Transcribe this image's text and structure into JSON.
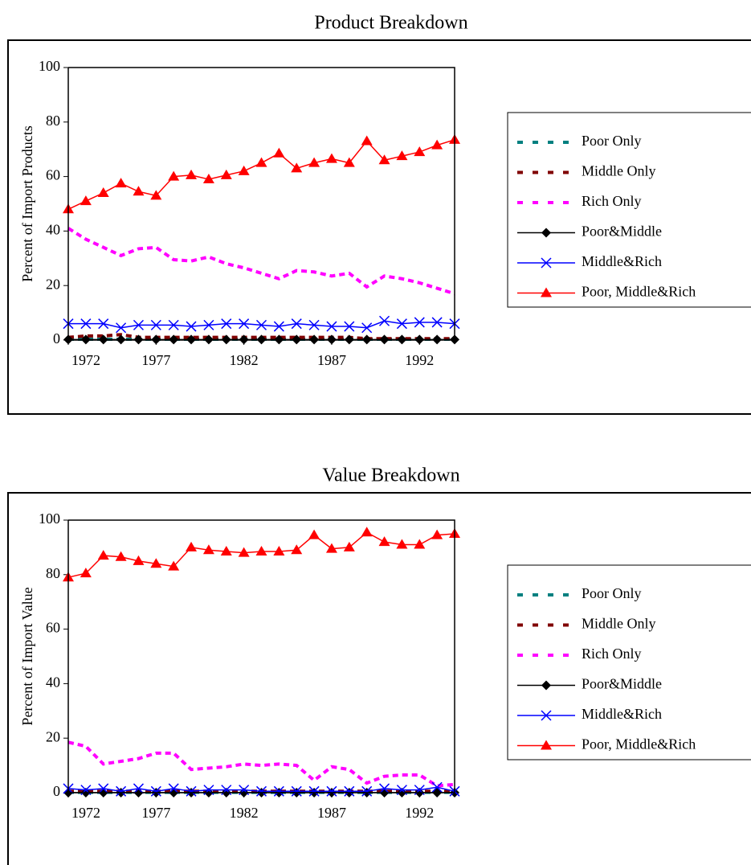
{
  "chart_data": [
    {
      "type": "line",
      "title": "Product Breakdown",
      "y_label": "Percent of Import Products",
      "x": [
        1972,
        1973,
        1974,
        1975,
        1976,
        1977,
        1978,
        1979,
        1980,
        1981,
        1982,
        1983,
        1984,
        1985,
        1986,
        1987,
        1988,
        1989,
        1990,
        1991,
        1992,
        1993,
        1994
      ],
      "xlim": [
        1972,
        1994
      ],
      "xticks": [
        1972,
        1977,
        1982,
        1987,
        1992
      ],
      "ylim": [
        0,
        100
      ],
      "yticks": [
        0,
        20,
        40,
        60,
        80,
        100
      ],
      "series": [
        {
          "name": "Poor Only",
          "color": "#008080",
          "style": "dashed",
          "values": [
            0.3,
            0.3,
            0.3,
            0.3,
            0.3,
            0.3,
            0.3,
            0.3,
            0.3,
            0.3,
            0.3,
            0.3,
            0.3,
            0.3,
            0.3,
            0.3,
            0.3,
            0.3,
            0.3,
            0.3,
            0.3,
            0.3,
            0.3
          ]
        },
        {
          "name": "Middle Only",
          "color": "#800000",
          "style": "dashed",
          "values": [
            1,
            1.5,
            1.5,
            2,
            1,
            1,
            1,
            1,
            1,
            1,
            1,
            1,
            1,
            1,
            1,
            1,
            1,
            0.5,
            0.5,
            0.5,
            0.5,
            0.5,
            0.5
          ]
        },
        {
          "name": "Rich Only",
          "color": "#ff00ff",
          "style": "dashed",
          "values": [
            41,
            37,
            34,
            31,
            33.5,
            34,
            29.5,
            29,
            30.5,
            28,
            26.5,
            24.5,
            22.5,
            25.5,
            25,
            23.5,
            24.5,
            19.5,
            23.5,
            22.5,
            21,
            19,
            17
          ]
        },
        {
          "name": "Poor&Middle",
          "color": "#000000",
          "style": "solid",
          "marker": "diamond",
          "values": [
            0.2,
            0.2,
            0.2,
            0.2,
            0.2,
            0.2,
            0.2,
            0.2,
            0.2,
            0.2,
            0.2,
            0.2,
            0.2,
            0.2,
            0.2,
            0.2,
            0.2,
            0.2,
            0.2,
            0.2,
            0.2,
            0.2,
            0.2
          ]
        },
        {
          "name": "Middle&Rich",
          "color": "#0000ff",
          "style": "solid",
          "marker": "x",
          "values": [
            6,
            6,
            6,
            4.5,
            5.5,
            5.5,
            5.5,
            5,
            5.5,
            6,
            6,
            5.5,
            5,
            6,
            5.5,
            5,
            5,
            4.5,
            7,
            6,
            6.5,
            6.5,
            6
          ]
        },
        {
          "name": "Poor, Middle&Rich",
          "color": "#ff0000",
          "style": "solid",
          "marker": "triangle",
          "values": [
            48,
            51,
            54,
            57.5,
            54.5,
            53,
            60,
            60.5,
            59,
            60.5,
            62,
            65,
            68.5,
            63,
            65,
            66.5,
            65,
            73,
            66,
            67.5,
            69,
            71.5,
            73.5
          ]
        }
      ]
    },
    {
      "type": "line",
      "title": "Value Breakdown",
      "y_label": "Percent of Import Value",
      "x": [
        1972,
        1973,
        1974,
        1975,
        1976,
        1977,
        1978,
        1979,
        1980,
        1981,
        1982,
        1983,
        1984,
        1985,
        1986,
        1987,
        1988,
        1989,
        1990,
        1991,
        1992,
        1993,
        1994
      ],
      "xlim": [
        1972,
        1994
      ],
      "xticks": [
        1972,
        1977,
        1982,
        1987,
        1992
      ],
      "ylim": [
        0,
        100
      ],
      "yticks": [
        0,
        20,
        40,
        60,
        80,
        100
      ],
      "series": [
        {
          "name": "Poor Only",
          "color": "#008080",
          "style": "dashed",
          "values": [
            0.1,
            0.1,
            0.1,
            0.1,
            0.1,
            0.1,
            0.1,
            0.1,
            0.1,
            0.1,
            0.1,
            0.1,
            0.1,
            0.1,
            0.1,
            0.1,
            0.1,
            0.1,
            0.1,
            0.1,
            0.1,
            0.1,
            0.1
          ]
        },
        {
          "name": "Middle Only",
          "color": "#800000",
          "style": "dashed",
          "values": [
            0.5,
            0.5,
            0.5,
            0.5,
            0.5,
            0.5,
            0.5,
            0.5,
            0.5,
            0.5,
            0.5,
            0.5,
            0.5,
            0.5,
            0.5,
            0.5,
            0.5,
            0.5,
            0.5,
            0.5,
            0.5,
            0.5,
            0.5
          ]
        },
        {
          "name": "Rich Only",
          "color": "#ff00ff",
          "style": "dashed",
          "values": [
            18.5,
            17,
            10.5,
            11.5,
            12.5,
            14.5,
            14.5,
            8.5,
            9,
            9.5,
            10.5,
            10,
            10.5,
            10,
            4.5,
            9.5,
            8.5,
            3.5,
            6,
            6.5,
            6.5,
            2.5,
            3
          ]
        },
        {
          "name": "Poor&Middle",
          "color": "#000000",
          "style": "solid",
          "marker": "diamond",
          "values": [
            0,
            0,
            0,
            0,
            0,
            0,
            0,
            0,
            0,
            0,
            0,
            0,
            0,
            0,
            0,
            0,
            0,
            0,
            0,
            0,
            0,
            0,
            0
          ]
        },
        {
          "name": "Middle&Rich",
          "color": "#0000ff",
          "style": "solid",
          "marker": "x",
          "values": [
            1.5,
            1,
            1.5,
            0.5,
            1.5,
            0.5,
            1.5,
            0.5,
            1,
            1,
            1,
            0.5,
            0.5,
            0.5,
            0.5,
            0.5,
            0.5,
            0.5,
            1.5,
            1,
            1,
            2,
            0.5
          ]
        },
        {
          "name": "Poor, Middle&Rich",
          "color": "#ff0000",
          "style": "solid",
          "marker": "triangle",
          "values": [
            79,
            80.5,
            87,
            86.5,
            85,
            84,
            83,
            90,
            89,
            88.5,
            88,
            88.5,
            88.5,
            89,
            94.5,
            89.5,
            90,
            95.5,
            92,
            91,
            91,
            94.5,
            95
          ]
        }
      ]
    }
  ]
}
